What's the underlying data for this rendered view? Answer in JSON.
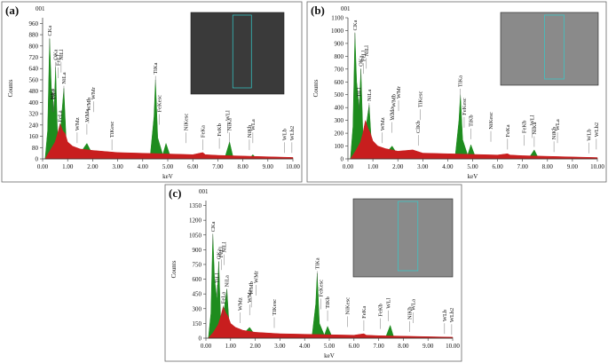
{
  "chart_data": [
    {
      "type": "area",
      "panel": "(a)",
      "subtitle": "001",
      "ylabel": "Counts",
      "xlabel": "keV",
      "xlim": [
        0,
        10
      ],
      "ylim": [
        0,
        1000
      ],
      "xticks": [
        {
          "value": 0,
          "label": "0.00"
        },
        {
          "value": 1,
          "label": "1.00"
        },
        {
          "value": 2,
          "label": "2.00"
        },
        {
          "value": 3,
          "label": "3.00"
        },
        {
          "value": 4,
          "label": "4.00"
        },
        {
          "value": 5,
          "label": "5.00"
        },
        {
          "value": 6,
          "label": "6.00"
        },
        {
          "value": 7,
          "label": "7.00"
        },
        {
          "value": 8,
          "label": "8.00"
        },
        {
          "value": 9,
          "label": "9.00"
        },
        {
          "value": 10,
          "label": "10.00"
        }
      ],
      "yticks": [
        0,
        80,
        160,
        240,
        320,
        400,
        480,
        560,
        640,
        720,
        800,
        880,
        960
      ],
      "series": [
        {
          "color": "#1e8c1e",
          "x": [
            0.1,
            0.2,
            0.28,
            0.35,
            0.4,
            0.45,
            0.52,
            0.6,
            0.7,
            0.85,
            0.95,
            1.1,
            1.5,
            1.77,
            2.0,
            3.0,
            4.3,
            4.45,
            4.51,
            4.6,
            4.8,
            4.93,
            5.1,
            6.0,
            7.3,
            7.47,
            7.6,
            8.3,
            8.4,
            8.5,
            10
          ],
          "values": [
            0,
            200,
            850,
            500,
            450,
            320,
            650,
            150,
            180,
            500,
            100,
            60,
            40,
            110,
            30,
            20,
            20,
            300,
            560,
            150,
            30,
            110,
            20,
            15,
            20,
            120,
            20,
            10,
            30,
            10,
            5
          ]
        },
        {
          "color": "#c81e1e",
          "x": [
            0.1,
            0.3,
            0.5,
            0.6,
            0.7,
            0.8,
            0.9,
            1.0,
            1.2,
            1.5,
            2,
            3,
            4,
            5,
            6,
            6.4,
            6.5,
            7,
            8,
            10
          ],
          "values": [
            0,
            60,
            120,
            180,
            250,
            200,
            180,
            120,
            90,
            70,
            60,
            45,
            40,
            35,
            30,
            45,
            30,
            25,
            20,
            10
          ]
        }
      ],
      "annotations": [
        {
          "text": "CKa",
          "x": 0.28,
          "y": 870
        },
        {
          "text": "NKa",
          "x": 0.39,
          "y": 420
        },
        {
          "text": "TiLl",
          "x": 0.45,
          "y": 420
        },
        {
          "text": "OKa",
          "x": 0.52,
          "y": 700
        },
        {
          "text": "FeLl",
          "x": 0.62,
          "y": 660
        },
        {
          "text": "NiLl",
          "x": 0.74,
          "y": 700
        },
        {
          "text": "FeLa",
          "x": 0.7,
          "y": 260
        },
        {
          "text": "NiLa",
          "x": 0.85,
          "y": 530
        },
        {
          "text": "WMz",
          "x": 1.38,
          "y": 200
        },
        {
          "text": "WMa",
          "x": 1.77,
          "y": 260
        },
        {
          "text": "WMb",
          "x": 1.84,
          "y": 340
        },
        {
          "text": "WMr",
          "x": 2.03,
          "y": 420
        },
        {
          "text": "TiKesc",
          "x": 2.77,
          "y": 150
        },
        {
          "text": "TiKa",
          "x": 4.51,
          "y": 600
        },
        {
          "text": "FeKesc",
          "x": 4.66,
          "y": 330
        },
        {
          "text": "NiKesc",
          "x": 5.73,
          "y": 200
        },
        {
          "text": "FeKa",
          "x": 6.4,
          "y": 150
        },
        {
          "text": "FeKb",
          "x": 7.06,
          "y": 160
        },
        {
          "text": "NiKa",
          "x": 7.47,
          "y": 200
        },
        {
          "text": "WLl",
          "x": 7.39,
          "y": 270
        },
        {
          "text": "NiKb",
          "x": 8.26,
          "y": 150
        },
        {
          "text": "WLa",
          "x": 8.4,
          "y": 200
        },
        {
          "text": "WLb",
          "x": 9.67,
          "y": 130
        },
        {
          "text": "WLb2",
          "x": 9.96,
          "y": 130
        }
      ]
    },
    {
      "type": "area",
      "panel": "(b)",
      "subtitle": "001",
      "ylabel": "Counts",
      "xlabel": "keV",
      "xlim": [
        0,
        10
      ],
      "ylim": [
        0,
        1100
      ],
      "xticks": [
        {
          "value": 0,
          "label": "0.00"
        },
        {
          "value": 1,
          "label": "1.00"
        },
        {
          "value": 2,
          "label": "2.00"
        },
        {
          "value": 3,
          "label": "3.00"
        },
        {
          "value": 4,
          "label": "4.00"
        },
        {
          "value": 5,
          "label": "5.00"
        },
        {
          "value": 6,
          "label": "6.00"
        },
        {
          "value": 7,
          "label": "7.00"
        },
        {
          "value": 8,
          "label": "8.00"
        },
        {
          "value": 9,
          "label": "9.00"
        },
        {
          "value": 10,
          "label": "10.00"
        }
      ],
      "yticks": [
        0,
        100,
        200,
        300,
        400,
        500,
        600,
        700,
        800,
        900,
        1000,
        1100
      ],
      "series": [
        {
          "color": "#1e8c1e",
          "x": [
            0.1,
            0.2,
            0.28,
            0.35,
            0.4,
            0.45,
            0.52,
            0.6,
            0.7,
            0.85,
            0.95,
            1.1,
            1.5,
            1.77,
            2.0,
            2.6,
            3.0,
            4.3,
            4.45,
            4.51,
            4.6,
            4.8,
            4.93,
            5.1,
            6.0,
            7.3,
            7.47,
            7.6,
            8.3,
            10
          ],
          "values": [
            0,
            250,
            980,
            600,
            500,
            380,
            700,
            200,
            220,
            420,
            100,
            60,
            40,
            100,
            30,
            40,
            20,
            20,
            300,
            500,
            150,
            30,
            110,
            20,
            15,
            20,
            70,
            20,
            10,
            5
          ]
        },
        {
          "color": "#c81e1e",
          "x": [
            0.1,
            0.3,
            0.5,
            0.6,
            0.7,
            0.8,
            0.9,
            1.0,
            1.2,
            1.5,
            2,
            2.6,
            3,
            4,
            5,
            6,
            6.4,
            6.5,
            7,
            8,
            10
          ],
          "values": [
            0,
            60,
            130,
            200,
            300,
            240,
            200,
            140,
            100,
            80,
            60,
            70,
            45,
            40,
            35,
            30,
            40,
            30,
            25,
            20,
            10
          ]
        }
      ],
      "annotations": [
        {
          "text": "CKa",
          "x": 0.28,
          "y": 1000
        },
        {
          "text": "TiLl",
          "x": 0.45,
          "y": 480
        },
        {
          "text": "OKa",
          "x": 0.52,
          "y": 720
        },
        {
          "text": "FeLl",
          "x": 0.62,
          "y": 760
        },
        {
          "text": "NiLl",
          "x": 0.74,
          "y": 800
        },
        {
          "text": "NiLa",
          "x": 0.85,
          "y": 450
        },
        {
          "text": "WMz",
          "x": 1.38,
          "y": 220
        },
        {
          "text": "WMa",
          "x": 1.77,
          "y": 300
        },
        {
          "text": "WMb",
          "x": 1.84,
          "y": 400
        },
        {
          "text": "WMr",
          "x": 2.03,
          "y": 470
        },
        {
          "text": "ClKb",
          "x": 2.82,
          "y": 200
        },
        {
          "text": "TiKesc",
          "x": 2.9,
          "y": 400
        },
        {
          "text": "TiKa",
          "x": 4.51,
          "y": 560
        },
        {
          "text": "FeKesc",
          "x": 4.66,
          "y": 340
        },
        {
          "text": "TiKb",
          "x": 4.93,
          "y": 250
        },
        {
          "text": "NiKesc",
          "x": 5.73,
          "y": 230
        },
        {
          "text": "FeKa",
          "x": 6.4,
          "y": 170
        },
        {
          "text": "FeKb",
          "x": 7.06,
          "y": 200
        },
        {
          "text": "WLl",
          "x": 7.39,
          "y": 260
        },
        {
          "text": "NiKa",
          "x": 7.47,
          "y": 190
        },
        {
          "text": "NiKb",
          "x": 8.26,
          "y": 150
        },
        {
          "text": "WLa",
          "x": 8.4,
          "y": 220
        },
        {
          "text": "WLb",
          "x": 9.67,
          "y": 140
        },
        {
          "text": "WLb2",
          "x": 9.96,
          "y": 170
        }
      ]
    },
    {
      "type": "area",
      "panel": "(c)",
      "subtitle": "001",
      "ylabel": "Counts",
      "xlabel": "keV",
      "xlim": [
        0,
        10
      ],
      "ylim": [
        0,
        1400
      ],
      "xticks": [
        {
          "value": 0,
          "label": "0.00"
        },
        {
          "value": 1,
          "label": "1.00"
        },
        {
          "value": 2,
          "label": "2.00"
        },
        {
          "value": 3,
          "label": "3.00"
        },
        {
          "value": 4,
          "label": "4.00"
        },
        {
          "value": 5,
          "label": "5.00"
        },
        {
          "value": 6,
          "label": "6.00"
        },
        {
          "value": 7,
          "label": "7.00"
        },
        {
          "value": 8,
          "label": "8.00"
        },
        {
          "value": 9,
          "label": "9.00"
        },
        {
          "value": 10,
          "label": "10.00"
        }
      ],
      "yticks": [
        0,
        150,
        300,
        450,
        600,
        750,
        900,
        1050,
        1200,
        1350
      ],
      "series": [
        {
          "color": "#1e8c1e",
          "x": [
            0.1,
            0.2,
            0.28,
            0.35,
            0.4,
            0.45,
            0.52,
            0.6,
            0.7,
            0.85,
            0.95,
            1.1,
            1.5,
            1.77,
            2.0,
            3.0,
            4.3,
            4.45,
            4.51,
            4.6,
            4.8,
            4.93,
            5.1,
            6.0,
            7.3,
            7.47,
            7.6,
            8.3,
            10
          ],
          "values": [
            0,
            250,
            1060,
            600,
            500,
            380,
            780,
            180,
            220,
            500,
            100,
            60,
            40,
            110,
            30,
            20,
            20,
            350,
            660,
            150,
            30,
            120,
            20,
            15,
            20,
            130,
            20,
            10,
            5
          ]
        },
        {
          "color": "#c81e1e",
          "x": [
            0.1,
            0.3,
            0.5,
            0.6,
            0.7,
            0.8,
            0.9,
            1.0,
            1.2,
            1.5,
            2,
            3,
            4,
            5,
            6,
            6.4,
            6.5,
            7,
            8,
            10
          ],
          "values": [
            0,
            60,
            140,
            220,
            320,
            260,
            220,
            150,
            110,
            80,
            60,
            45,
            40,
            35,
            30,
            45,
            30,
            25,
            20,
            10
          ]
        }
      ],
      "annotations": [
        {
          "text": "CKa",
          "x": 0.28,
          "y": 1080
        },
        {
          "text": "TiLl",
          "x": 0.45,
          "y": 560
        },
        {
          "text": "OKa",
          "x": 0.52,
          "y": 800
        },
        {
          "text": "FeLl",
          "x": 0.62,
          "y": 820
        },
        {
          "text": "NiLl",
          "x": 0.74,
          "y": 870
        },
        {
          "text": "FeLa",
          "x": 0.7,
          "y": 350
        },
        {
          "text": "NiLa",
          "x": 0.85,
          "y": 520
        },
        {
          "text": "WMz",
          "x": 1.38,
          "y": 280
        },
        {
          "text": "WMa",
          "x": 1.77,
          "y": 360
        },
        {
          "text": "WMb",
          "x": 1.84,
          "y": 440
        },
        {
          "text": "WMr",
          "x": 2.03,
          "y": 560
        },
        {
          "text": "TiKesc",
          "x": 2.77,
          "y": 230
        },
        {
          "text": "TiKa",
          "x": 4.51,
          "y": 700
        },
        {
          "text": "FeKesc",
          "x": 4.66,
          "y": 420
        },
        {
          "text": "TiKb",
          "x": 4.93,
          "y": 300
        },
        {
          "text": "NiKesc",
          "x": 5.73,
          "y": 240
        },
        {
          "text": "FeKa",
          "x": 6.4,
          "y": 200
        },
        {
          "text": "FeKb",
          "x": 7.06,
          "y": 220
        },
        {
          "text": "WLl",
          "x": 7.39,
          "y": 300
        },
        {
          "text": "NiKb",
          "x": 8.26,
          "y": 190
        },
        {
          "text": "WLa",
          "x": 8.4,
          "y": 280
        },
        {
          "text": "WLb",
          "x": 9.67,
          "y": 170
        },
        {
          "text": "WLb2",
          "x": 9.96,
          "y": 160
        }
      ]
    }
  ]
}
